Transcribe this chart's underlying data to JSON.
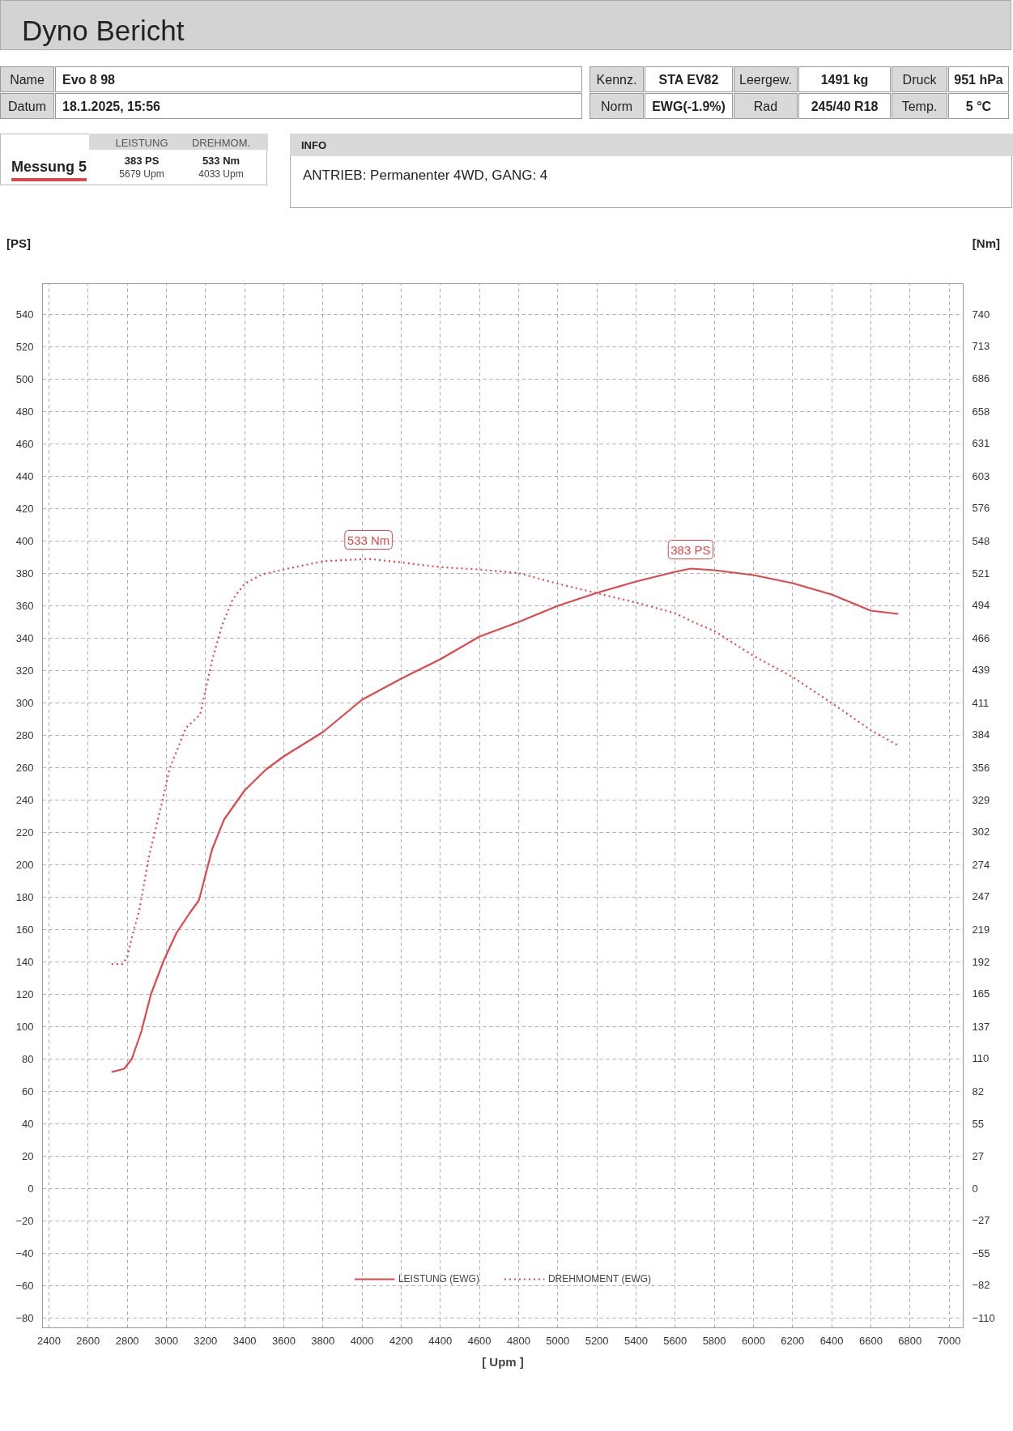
{
  "chart_data": {
    "type": "line",
    "title": "Dyno Bericht",
    "xlabel": "[ Upm ]",
    "ylabel": "[PS]",
    "y2label": "[Nm]",
    "xlim": [
      2367,
      7072
    ],
    "xticks": [
      2400,
      2600,
      2800,
      3000,
      3200,
      3400,
      3600,
      3800,
      4000,
      4200,
      4400,
      4600,
      4800,
      5000,
      5200,
      5400,
      5600,
      5800,
      6000,
      6200,
      6400,
      6600,
      6800,
      7000
    ],
    "ylim": [
      -86,
      559
    ],
    "yticks": [
      -80,
      -60,
      -40,
      -20,
      0,
      20,
      40,
      60,
      80,
      100,
      120,
      140,
      160,
      180,
      200,
      220,
      240,
      260,
      280,
      300,
      320,
      340,
      360,
      380,
      400,
      420,
      440,
      460,
      480,
      500,
      520,
      540
    ],
    "y2lim": [
      -118,
      766
    ],
    "y2ticks": [
      -110,
      -82,
      -55,
      -27,
      0,
      27,
      55,
      82,
      110,
      137,
      165,
      192,
      219,
      247,
      274,
      302,
      329,
      356,
      384,
      411,
      439,
      466,
      494,
      521,
      548,
      576,
      603,
      631,
      658,
      686,
      713,
      740
    ],
    "grid": true,
    "legend": "bottom",
    "series": [
      {
        "name": "LEISTUNG (EWG)",
        "color": "#e0474c",
        "line_style": "solid",
        "x": [
          2720,
          2784,
          2823,
          2872,
          2921,
          2987,
          3052,
          3118,
          3166,
          3235,
          3295,
          3400,
          3510,
          3600,
          3800,
          4000,
          4200,
          4400,
          4600,
          4800,
          5000,
          5200,
          5400,
          5600,
          5679,
          5800,
          6000,
          6200,
          6400,
          6500,
          6600,
          6740
        ],
        "values": [
          72,
          74,
          80,
          97,
          120,
          141,
          158,
          170,
          178,
          210,
          228,
          246,
          259,
          267,
          282,
          302,
          315,
          327,
          341,
          350,
          360,
          368,
          375,
          381,
          383,
          382,
          379,
          374,
          367,
          362,
          357,
          355
        ]
      },
      {
        "name": "DREHMOMENT (EWG)",
        "color": "#e0474c",
        "line_style": "dotted",
        "axis": "y2",
        "x": [
          2720,
          2775,
          2800,
          2823,
          2862,
          2912,
          2981,
          3016,
          3100,
          3172,
          3235,
          3285,
          3340,
          3400,
          3490,
          3600,
          3800,
          4033,
          4200,
          4400,
          4600,
          4800,
          5000,
          5200,
          5400,
          5600,
          5700,
          5800,
          6000,
          6200,
          6400,
          6600,
          6740
        ],
        "values": [
          190,
          190,
          196,
          212,
          236,
          282,
          329,
          355,
          390,
          401,
          448,
          477,
          499,
          512,
          520,
          524,
          531,
          533,
          530,
          526,
          524,
          521,
          512,
          504,
          496,
          487,
          479,
          472,
          451,
          433,
          411,
          388,
          375
        ]
      }
    ],
    "annotations": [
      "Name",
      "Evo 8 98",
      "Kennz.",
      "STA EV82",
      "Leergew.",
      "1491 kg",
      "Druck",
      "951 hPa",
      "Datum",
      "18.1.2025, 15:56",
      "Norm",
      "EWG(-1.9%)",
      "Rad",
      "245/40 R18",
      "Temp.",
      "5 °C",
      "LEISTUNG",
      "DREHMOM.",
      "Messung 5",
      "383 PS",
      "533 Nm",
      "5679 Upm",
      "4033 Upm",
      "INFO",
      "ANTRIEB: Permanenter 4WD,  GANG: 4",
      {
        "text": "533 Nm",
        "x": 4033,
        "y": 389
      },
      {
        "text": "383 PS",
        "x": 5679,
        "y": 383
      }
    ]
  }
}
